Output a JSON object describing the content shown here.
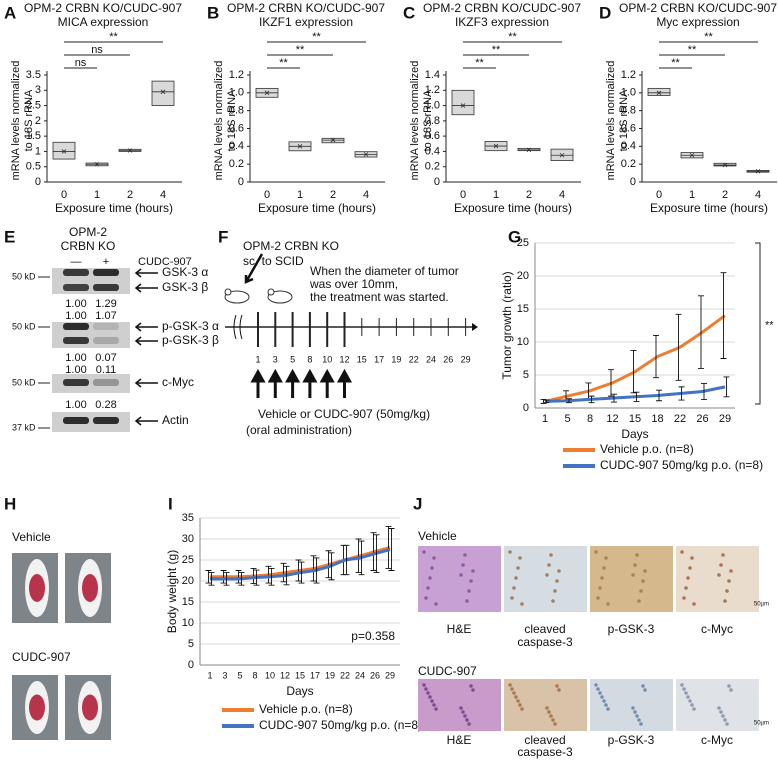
{
  "panel_labels": [
    "A",
    "B",
    "C",
    "D",
    "E",
    "F",
    "G",
    "H",
    "I",
    "J"
  ],
  "chart_data": [
    {
      "type": "box",
      "title": "OPM-2 CRBN KO/CUDC-907",
      "subtitle": "MICA expression",
      "ylabel": [
        "mRNA levels normalized",
        "to 18S rRNA"
      ],
      "xlabel": "Exposure time (hours)",
      "categories": [
        "0",
        "1",
        "2",
        "4"
      ],
      "low": [
        0.75,
        0.53,
        1.0,
        2.5
      ],
      "high": [
        1.3,
        0.62,
        1.07,
        3.3
      ],
      "mean": [
        1.0,
        0.58,
        1.03,
        2.95
      ],
      "ylim": [
        0,
        3.5
      ],
      "yticks": [
        0,
        0.5,
        1,
        1.5,
        2,
        2.5,
        3,
        3.5
      ],
      "significance": [
        "ns",
        "ns",
        "**"
      ],
      "color": "#d9d9d9"
    },
    {
      "type": "box",
      "title": "OPM-2 CRBN KO/CUDC-907",
      "subtitle": "IKZF1 expression",
      "ylabel": [
        "mRNA levels normalized",
        "to 18S rRNA"
      ],
      "xlabel": "Exposure time (hours)",
      "categories": [
        "0",
        "1",
        "2",
        "4"
      ],
      "low": [
        0.95,
        0.35,
        0.44,
        0.28
      ],
      "high": [
        1.05,
        0.45,
        0.49,
        0.34
      ],
      "mean": [
        1.0,
        0.4,
        0.47,
        0.31
      ],
      "ylim": [
        0,
        1.2
      ],
      "yticks": [
        0,
        0.2,
        0.4,
        0.6,
        0.8,
        {
          "value": 1,
          "label": "1.0"
        },
        1.2
      ],
      "significance": [
        "**",
        "**",
        "**"
      ],
      "color": "#d9d9d9"
    },
    {
      "type": "box",
      "title": "OPM-2 CRBN KO/CUDC-907",
      "subtitle": "IKZF3 expression",
      "ylabel": [
        "mRNA levels normalized",
        "to 18S rRNA"
      ],
      "xlabel": "Exposure time (hours)",
      "categories": [
        "0",
        "1",
        "2",
        "4"
      ],
      "low": [
        0.88,
        0.41,
        0.41,
        0.28
      ],
      "high": [
        1.2,
        0.53,
        0.44,
        0.43
      ],
      "mean": [
        1.0,
        0.47,
        0.42,
        0.35
      ],
      "ylim": [
        0,
        1.4
      ],
      "yticks": [
        0,
        0.2,
        0.4,
        0.6,
        0.8,
        {
          "value": 1,
          "label": "1.0"
        },
        1.2,
        1.4
      ],
      "significance": [
        "**",
        "**",
        "**"
      ],
      "color": "#d9d9d9"
    },
    {
      "type": "box",
      "title": "OPM-2 CRBN KO/CUDC-907",
      "subtitle": "Myc expression",
      "ylabel": [
        "mRNA levels normalized",
        "to 18S rRNA"
      ],
      "xlabel": "Exposure time (hours)",
      "categories": [
        "0",
        "1",
        "2",
        "4"
      ],
      "low": [
        0.97,
        0.27,
        0.18,
        0.11
      ],
      "high": [
        1.05,
        0.33,
        0.21,
        0.13
      ],
      "mean": [
        1.0,
        0.3,
        0.19,
        0.12
      ],
      "ylim": [
        0,
        1.2
      ],
      "yticks": [
        0,
        0.2,
        0.4,
        0.6,
        0.8,
        {
          "value": 1,
          "label": "1.0"
        },
        1.2
      ],
      "significance": [
        "**",
        "**",
        "**"
      ],
      "color": "#d9d9d9"
    },
    {
      "type": "line",
      "ylabel": "Tumor growth (ratio)",
      "xlabel": "Days",
      "categories": [
        "1",
        "5",
        "8",
        "12",
        "15",
        "18",
        "22",
        "26",
        "29"
      ],
      "series": [
        {
          "name": "Vehicle p.o. (n=8)",
          "color": "#ed7d31",
          "values": [
            1,
            1.8,
            2.6,
            3.8,
            5.5,
            7.8,
            9.2,
            11.5,
            14
          ],
          "errors": [
            0.3,
            0.8,
            1.2,
            2,
            3.2,
            3.2,
            5,
            5.5,
            6.5
          ]
        },
        {
          "name": "CUDC-907 50mg/kg p.o. (n=8)",
          "color": "#4472c4",
          "values": [
            1,
            1.1,
            1.3,
            1.5,
            1.7,
            1.9,
            2.2,
            2.5,
            3.2
          ],
          "errors": [
            0.2,
            0.3,
            0.5,
            0.6,
            0.7,
            0.8,
            1,
            1.2,
            1.5
          ]
        }
      ],
      "ylim": [
        0,
        25
      ],
      "yticks": [
        0,
        5,
        10,
        15,
        20,
        25
      ],
      "grid": true,
      "significance": "**"
    },
    {
      "type": "line",
      "ylabel": "Body weight (g)",
      "xlabel": "Days",
      "categories": [
        "1",
        "3",
        "5",
        "8",
        "10",
        "12",
        "15",
        "17",
        "19",
        "22",
        "24",
        "26",
        "29"
      ],
      "series": [
        {
          "name": "Vehicle p.o. (n=8)",
          "color": "#ed7d31",
          "values": [
            21,
            21,
            21,
            21.2,
            21.5,
            22,
            22.5,
            23,
            24,
            25,
            26,
            27,
            28
          ],
          "errors": [
            1.5,
            1.5,
            1.5,
            1.8,
            2,
            2.2,
            2.5,
            3,
            3.2,
            3.5,
            4,
            4.5,
            5
          ]
        },
        {
          "name": "CUDC-907 50mg/kg p.o. (n=8)",
          "color": "#4472c4",
          "values": [
            20.5,
            20.5,
            20.5,
            20.8,
            21,
            21.3,
            22,
            22.5,
            23.5,
            25,
            25.5,
            26.5,
            27.5
          ],
          "errors": [
            1.5,
            1.5,
            1.5,
            1.8,
            2,
            2.2,
            2.5,
            3,
            3.2,
            3.5,
            4,
            4.5,
            5
          ]
        }
      ],
      "ylim": [
        0,
        35
      ],
      "yticks": [
        0,
        5,
        10,
        15,
        20,
        25,
        30,
        35
      ],
      "grid": true,
      "annotation": "p=0.358"
    }
  ],
  "blot": {
    "cell_line": [
      "OPM-2",
      "CRBN KO"
    ],
    "treatment": "CUDC-907",
    "lanes": [
      "—",
      "+"
    ],
    "markers": [
      "50 kD",
      "50 kD",
      "50 kD",
      "37 kD"
    ],
    "rows": [
      {
        "bands": [
          "GSK-3 α",
          "GSK-3 β"
        ],
        "quant": [
          [
            "1.00",
            "1.29"
          ],
          [
            "1.00",
            "1.07"
          ]
        ]
      },
      {
        "bands": [
          "p-GSK-3 α",
          "p-GSK-3 β"
        ],
        "quant": [
          [
            "1.00",
            "0.07"
          ],
          [
            "1.00",
            "0.11"
          ]
        ]
      },
      {
        "bands": [
          "c-Myc"
        ],
        "quant": [
          [
            "1.00",
            "0.28"
          ]
        ]
      },
      {
        "bands": [
          "Actin"
        ]
      }
    ]
  },
  "schedule": {
    "model": "OPM-2 CRBN KO",
    "route": "sc. to SCID",
    "note": [
      "When the diameter of tumor",
      "was over 10mm,",
      "the treatment was started."
    ],
    "days": [
      "1",
      "3",
      "5",
      "8",
      "10",
      "12",
      "15",
      "17",
      "19",
      "22",
      "24",
      "26",
      "29"
    ],
    "treatment": "Vehicle  or  CUDC-907  (50mg/kg)",
    "administration": "(oral administration)"
  },
  "photos": {
    "groups": [
      "Vehicle",
      "CUDC-907"
    ]
  },
  "histology": {
    "groups": [
      "Vehicle",
      "CUDC-907"
    ],
    "stains": [
      [
        "H&E"
      ],
      [
        "cleaved",
        "caspase-3"
      ],
      [
        "p-GSK-3"
      ],
      [
        "c-Myc"
      ]
    ],
    "scale_bar": "50µm"
  }
}
